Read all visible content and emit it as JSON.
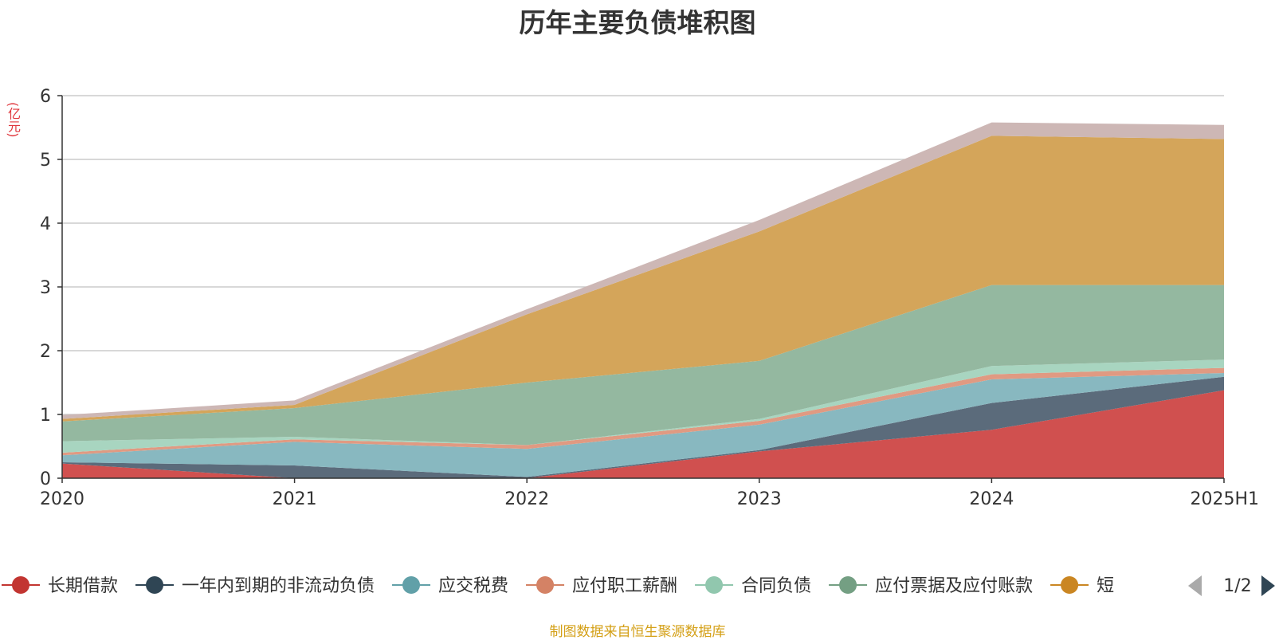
{
  "chart_data": {
    "type": "area",
    "stacked": true,
    "title": "历年主要负债堆积图",
    "unit_label": "(亿元)",
    "categories": [
      "2020",
      "2021",
      "2022",
      "2023",
      "2024",
      "2025H1"
    ],
    "ylim": [
      0,
      6
    ],
    "yticks": [
      "0",
      "1",
      "2",
      "3",
      "4",
      "5",
      "6"
    ],
    "grid": true,
    "series": [
      {
        "name": "长期借款",
        "color": "#d0504f",
        "values": [
          0.23,
          0.0,
          0.0,
          0.42,
          0.76,
          1.38
        ]
      },
      {
        "name": "一年内到期的非流动负债",
        "color": "#5b6b7b",
        "values": [
          0.02,
          0.2,
          0.02,
          0.02,
          0.42,
          0.21
        ]
      },
      {
        "name": "应交税费",
        "color": "#88b8c0",
        "values": [
          0.11,
          0.37,
          0.44,
          0.4,
          0.37,
          0.06
        ]
      },
      {
        "name": "应付职工薪酬",
        "color": "#e09a82",
        "values": [
          0.04,
          0.04,
          0.06,
          0.06,
          0.08,
          0.08
        ]
      },
      {
        "name": "合同负债",
        "color": "#a8d5c0",
        "values": [
          0.18,
          0.04,
          0.0,
          0.03,
          0.13,
          0.13
        ]
      },
      {
        "name": "应付票据及应付账款",
        "color": "#94b8a0",
        "values": [
          0.31,
          0.45,
          0.98,
          0.91,
          1.27,
          1.17
        ]
      },
      {
        "name": "短",
        "color": "#d4a55a",
        "values": [
          0.04,
          0.05,
          1.07,
          2.03,
          2.34,
          2.29
        ]
      },
      {
        "name": "",
        "color": "#cdb7b5",
        "values": [
          0.06,
          0.07,
          0.08,
          0.18,
          0.21,
          0.22
        ]
      }
    ],
    "legend": {
      "position": "bottom",
      "page": "1/2",
      "items": [
        {
          "name": "长期借款",
          "color": "#c23531"
        },
        {
          "name": "一年内到期的非流动负债",
          "color": "#2f4554"
        },
        {
          "name": "应交税费",
          "color": "#61a0a8"
        },
        {
          "name": "应付职工薪酬",
          "color": "#d48265"
        },
        {
          "name": "合同负债",
          "color": "#91c7ae"
        },
        {
          "name": "应付票据及应付账款",
          "color": "#749f83"
        },
        {
          "name": "短",
          "color": "#ca8622"
        }
      ]
    },
    "source": "制图数据来自恒生聚源数据库"
  }
}
